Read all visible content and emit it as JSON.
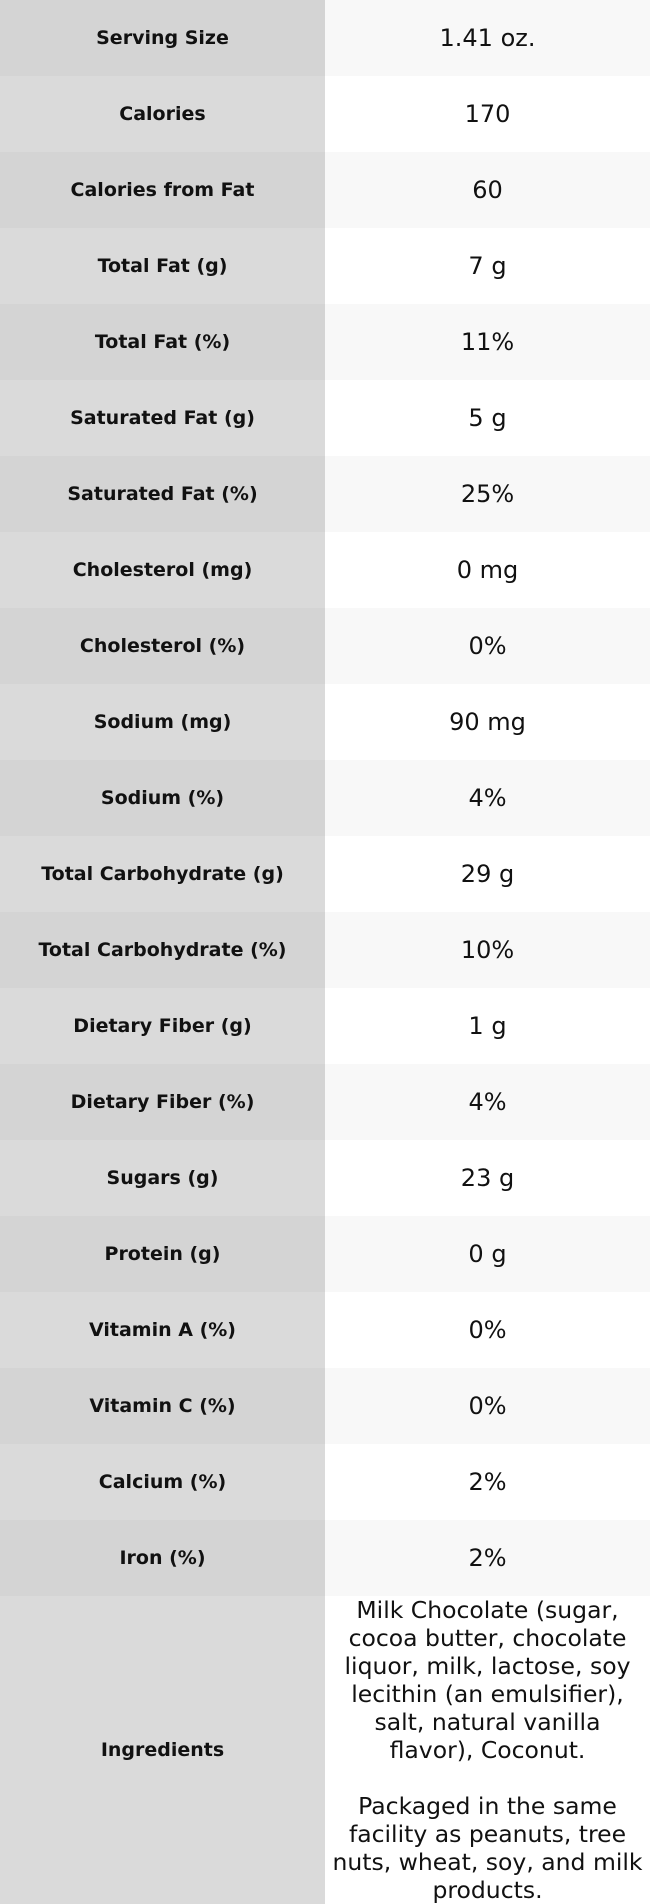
{
  "table": {
    "rows": [
      {
        "label": "Serving Size",
        "value": "1.41 oz."
      },
      {
        "label": "Calories",
        "value": "170"
      },
      {
        "label": "Calories from Fat",
        "value": "60"
      },
      {
        "label": "Total Fat (g)",
        "value": "7 g"
      },
      {
        "label": "Total Fat (%)",
        "value": "11%"
      },
      {
        "label": "Saturated Fat (g)",
        "value": "5 g"
      },
      {
        "label": "Saturated Fat (%)",
        "value": "25%"
      },
      {
        "label": "Cholesterol (mg)",
        "value": "0 mg"
      },
      {
        "label": "Cholesterol (%)",
        "value": "0%"
      },
      {
        "label": "Sodium (mg)",
        "value": "90 mg"
      },
      {
        "label": "Sodium (%)",
        "value": "4%"
      },
      {
        "label": "Total Carbohydrate (g)",
        "value": "29 g"
      },
      {
        "label": "Total Carbohydrate (%)",
        "value": "10%"
      },
      {
        "label": "Dietary Fiber (g)",
        "value": "1 g"
      },
      {
        "label": "Dietary Fiber (%)",
        "value": "4%"
      },
      {
        "label": "Sugars (g)",
        "value": "23 g"
      },
      {
        "label": "Protein (g)",
        "value": "0 g"
      },
      {
        "label": "Vitamin A (%)",
        "value": "0%"
      },
      {
        "label": "Vitamin C (%)",
        "value": "0%"
      },
      {
        "label": "Calcium (%)",
        "value": "2%"
      },
      {
        "label": "Iron (%)",
        "value": "2%"
      }
    ],
    "ingredients": {
      "label": "Ingredients",
      "paragraphs": [
        "Milk Chocolate (sugar, cocoa butter, chocolate liquor, milk, lactose, soy lecithin (an emulsifier), salt, natural vanilla flavor), Coconut.",
        "Packaged in the same facility as peanuts, tree nuts, wheat, soy, and milk products."
      ]
    }
  }
}
